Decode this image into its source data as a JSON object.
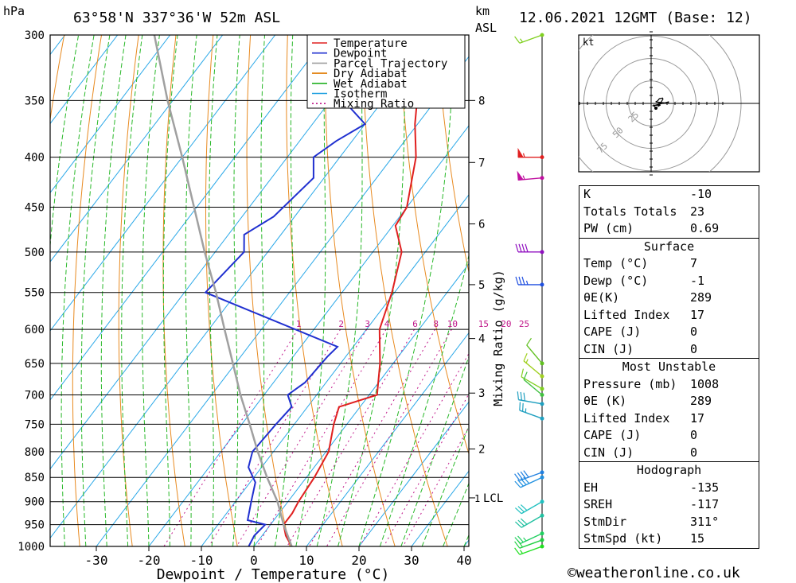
{
  "header": {
    "location": "63°58'N 337°36'W 52m ASL",
    "datetime": "12.06.2021 12GMT (Base: 12)",
    "pressure_unit": "hPa",
    "height_unit": "km",
    "height_unit_ref": "ASL"
  },
  "chart_data": {
    "type": "line",
    "subtype": "skew-t log-p",
    "xlabel": "Dewpoint / Temperature (°C)",
    "ylabel": "",
    "x_ticks": [
      -30,
      -20,
      -10,
      0,
      10,
      20,
      30,
      40
    ],
    "xlim": [
      -40,
      40
    ],
    "pressure_levels": [
      300,
      350,
      400,
      450,
      500,
      550,
      600,
      650,
      700,
      750,
      800,
      850,
      900,
      950,
      1000
    ],
    "km_ticks": [
      {
        "km": "8",
        "p": 350
      },
      {
        "km": "7",
        "p": 405
      },
      {
        "km": "6",
        "p": 468
      },
      {
        "km": "5",
        "p": 540
      },
      {
        "km": "4",
        "p": 613
      },
      {
        "km": "3",
        "p": 697
      },
      {
        "km": "2",
        "p": 795
      }
    ],
    "lcl": {
      "label": "LCL",
      "km": "1",
      "p": 892
    },
    "mixing_ratio_axis_label": "Mixing Ratio (g/kg)",
    "mixing_ratio_labels": [
      "1",
      "2",
      "3",
      "4",
      "6",
      "8",
      "10",
      "15",
      "20",
      "25"
    ],
    "mixing_ratio_values": [
      1,
      2,
      3,
      4,
      6,
      8,
      10,
      15,
      20,
      25
    ],
    "legend": {
      "position": "top-right",
      "entries": [
        {
          "name": "Temperature",
          "color": "#e02020",
          "style": "solid"
        },
        {
          "name": "Dewpoint",
          "color": "#2030d0",
          "style": "solid"
        },
        {
          "name": "Parcel Trajectory",
          "color": "#a0a0a0",
          "style": "solid"
        },
        {
          "name": "Dry Adiabat",
          "color": "#e07a00",
          "style": "solid"
        },
        {
          "name": "Wet Adiabat",
          "color": "#20b020",
          "style": "solid"
        },
        {
          "name": "Isotherm",
          "color": "#20a0e0",
          "style": "solid"
        },
        {
          "name": "Mixing Ratio",
          "color": "#c0188a",
          "style": "dotted"
        }
      ]
    },
    "series": [
      {
        "name": "Temperature",
        "points": [
          [
            1000,
            7.2
          ],
          [
            975,
            4.5
          ],
          [
            950,
            2.5
          ],
          [
            925,
            2.5
          ],
          [
            900,
            2.0
          ],
          [
            850,
            1.5
          ],
          [
            800,
            0.5
          ],
          [
            750,
            -2.5
          ],
          [
            720,
            -4.0
          ],
          [
            700,
            1.5
          ],
          [
            650,
            -2.5
          ],
          [
            600,
            -7.5
          ],
          [
            550,
            -10.5
          ],
          [
            500,
            -14.5
          ],
          [
            470,
            -19.5
          ],
          [
            450,
            -20.0
          ],
          [
            400,
            -25.5
          ],
          [
            370,
            -30.5
          ],
          [
            350,
            -33.5
          ],
          [
            300,
            -43.0
          ]
        ]
      },
      {
        "name": "Dewpoint",
        "points": [
          [
            1000,
            -1.0
          ],
          [
            975,
            -1.5
          ],
          [
            950,
            -1.0
          ],
          [
            940,
            -5.0
          ],
          [
            900,
            -7.0
          ],
          [
            860,
            -9.0
          ],
          [
            830,
            -12.5
          ],
          [
            800,
            -14.0
          ],
          [
            750,
            -13.5
          ],
          [
            720,
            -13.0
          ],
          [
            700,
            -15.5
          ],
          [
            680,
            -14.0
          ],
          [
            640,
            -13.5
          ],
          [
            625,
            -13.0
          ],
          [
            550,
            -46.0
          ],
          [
            500,
            -44.5
          ],
          [
            480,
            -47.0
          ],
          [
            460,
            -44.0
          ],
          [
            420,
            -42.0
          ],
          [
            400,
            -45.0
          ],
          [
            385,
            -43.0
          ],
          [
            370,
            -40.0
          ],
          [
            350,
            -47.5
          ],
          [
            300,
            -47.0
          ]
        ]
      },
      {
        "name": "Parcel Trajectory",
        "points": [
          [
            1000,
            7.2
          ],
          [
            950,
            2.5
          ],
          [
            900,
            -2.0
          ],
          [
            850,
            -7.5
          ],
          [
            800,
            -13.0
          ],
          [
            750,
            -18.5
          ],
          [
            700,
            -24.5
          ],
          [
            650,
            -30.5
          ],
          [
            600,
            -37.0
          ],
          [
            550,
            -44.0
          ],
          [
            500,
            -52.0
          ],
          [
            450,
            -60.5
          ],
          [
            400,
            -70.0
          ],
          [
            350,
            -81.0
          ],
          [
            300,
            -93.0
          ]
        ]
      }
    ],
    "wind_barbs": [
      {
        "p": 300,
        "dir": 250,
        "kt": 15,
        "color": "#80d020"
      },
      {
        "p": 400,
        "dir": 270,
        "kt": 55,
        "color": "#e02020"
      },
      {
        "p": 420,
        "dir": 265,
        "kt": 55,
        "color": "#c010a0"
      },
      {
        "p": 500,
        "dir": 270,
        "kt": 40,
        "color": "#9010c0"
      },
      {
        "p": 540,
        "dir": 270,
        "kt": 35,
        "color": "#2050e0"
      },
      {
        "p": 650,
        "dir": 320,
        "kt": 10,
        "color": "#60c020"
      },
      {
        "p": 670,
        "dir": 310,
        "kt": 15,
        "color": "#a0d020"
      },
      {
        "p": 690,
        "dir": 300,
        "kt": 10,
        "color": "#80d020"
      },
      {
        "p": 700,
        "dir": 310,
        "kt": 10,
        "color": "#40c040"
      },
      {
        "p": 715,
        "dir": 280,
        "kt": 30,
        "color": "#20a0c0"
      },
      {
        "p": 740,
        "dir": 290,
        "kt": 25,
        "color": "#20a0c0"
      },
      {
        "p": 840,
        "dir": 250,
        "kt": 40,
        "color": "#2080e0"
      },
      {
        "p": 850,
        "dir": 245,
        "kt": 40,
        "color": "#2090e0"
      },
      {
        "p": 900,
        "dir": 240,
        "kt": 30,
        "color": "#20c0c0"
      },
      {
        "p": 930,
        "dir": 240,
        "kt": 30,
        "color": "#20c0a0"
      },
      {
        "p": 970,
        "dir": 245,
        "kt": 25,
        "color": "#20d060"
      },
      {
        "p": 985,
        "dir": 250,
        "kt": 20,
        "color": "#20d040"
      },
      {
        "p": 1000,
        "dir": 250,
        "kt": 15,
        "color": "#20e020"
      }
    ]
  },
  "hodograph": {
    "unit": "kt",
    "ring_labels": [
      "25",
      "50",
      "75"
    ],
    "ring_values": [
      25,
      50,
      75
    ]
  },
  "panel": {
    "top": [
      {
        "label": "K",
        "value": "-10"
      },
      {
        "label": "Totals Totals",
        "value": "23"
      },
      {
        "label": "PW (cm)",
        "value": "0.69"
      }
    ],
    "surface": {
      "title": "Surface",
      "rows": [
        {
          "label": "Temp (°C)",
          "value": "7"
        },
        {
          "label": "Dewp (°C)",
          "value": "-1"
        },
        {
          "label": "θE(K)",
          "value": "289"
        },
        {
          "label": "Lifted Index",
          "value": "17"
        },
        {
          "label": "CAPE (J)",
          "value": "0"
        },
        {
          "label": "CIN (J)",
          "value": "0"
        }
      ]
    },
    "most_unstable": {
      "title": "Most Unstable",
      "rows": [
        {
          "label": "Pressure (mb)",
          "value": "1008"
        },
        {
          "label": "θE (K)",
          "value": "289"
        },
        {
          "label": "Lifted Index",
          "value": "17"
        },
        {
          "label": "CAPE (J)",
          "value": "0"
        },
        {
          "label": "CIN (J)",
          "value": "0"
        }
      ]
    },
    "hodograph": {
      "title": "Hodograph",
      "rows": [
        {
          "label": "EH",
          "value": "-135"
        },
        {
          "label": "SREH",
          "value": "-117"
        },
        {
          "label": "StmDir",
          "value": "311°"
        },
        {
          "label": "StmSpd (kt)",
          "value": "15"
        }
      ]
    }
  },
  "footer": "©weatheronline.co.uk"
}
